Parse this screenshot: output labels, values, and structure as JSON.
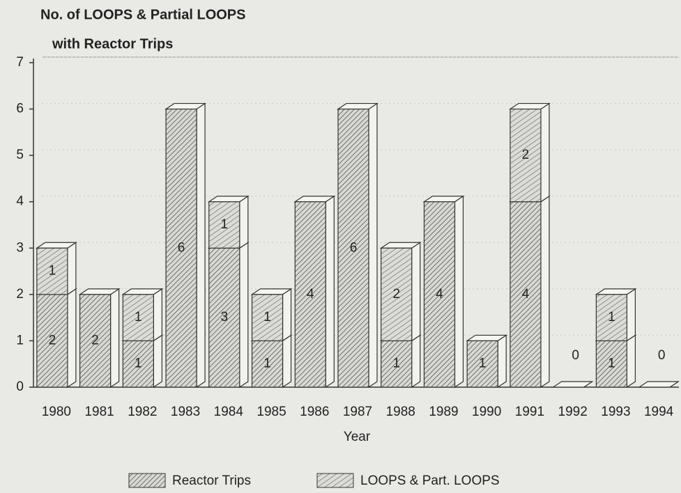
{
  "chart_data": {
    "type": "bar",
    "stacked": true,
    "title": "No. of LOOPS & Partial LOOPS",
    "subtitle": "with Reactor Trips",
    "x_label": "Year",
    "categories": [
      "1980",
      "1981",
      "1982",
      "1983",
      "1984",
      "1985",
      "1986",
      "1987",
      "1988",
      "1989",
      "1990",
      "1991",
      "1992",
      "1993",
      "1994"
    ],
    "series": [
      {
        "name": "Reactor Trips",
        "color": "#6f6f6f",
        "values": [
          2,
          2,
          1,
          6,
          3,
          1,
          4,
          6,
          1,
          4,
          1,
          4,
          0,
          1,
          0
        ]
      },
      {
        "name": "LOOPS & Part. LOOPS",
        "color": "#8a8a8a",
        "values": [
          1,
          null,
          1,
          null,
          1,
          1,
          null,
          null,
          2,
          null,
          null,
          2,
          null,
          1,
          null
        ]
      }
    ],
    "ylim": [
      0,
      7
    ],
    "yticks": [
      0,
      1,
      2,
      3,
      4,
      5,
      6,
      7
    ],
    "grid": true,
    "legend": "bottom"
  }
}
